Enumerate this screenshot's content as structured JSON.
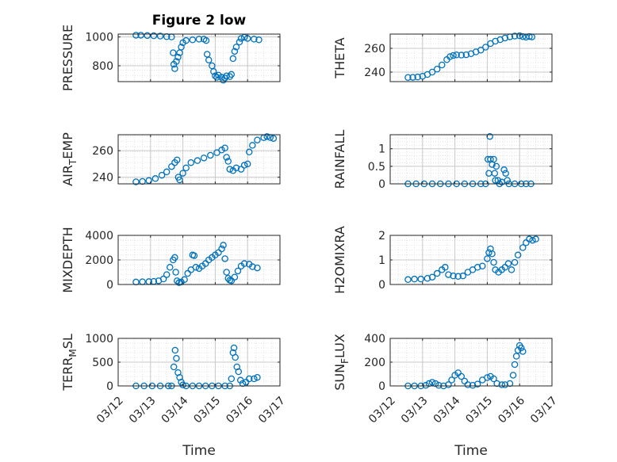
{
  "title": "Figure 2 low",
  "colors": {
    "marker": "#0072BD",
    "axis": "#262626",
    "grid": "#dcdcdc"
  },
  "chart_data": [
    {
      "type": "scatter",
      "ylabel": "PRESSURE",
      "ylabel_sub": "",
      "ylabel_suffix": "",
      "xlim": [
        "03/12",
        "03/17"
      ],
      "ylim": [
        690,
        1020
      ],
      "yticks": [
        800,
        1000
      ],
      "ytick_labels": [
        "800",
        "1000"
      ],
      "points": [
        [
          12.55,
          1012
        ],
        [
          12.7,
          1012
        ],
        [
          12.9,
          1010
        ],
        [
          13.1,
          1008
        ],
        [
          13.3,
          1006
        ],
        [
          13.5,
          1002
        ],
        [
          13.65,
          1000
        ],
        [
          13.7,
          890
        ],
        [
          13.72,
          810
        ],
        [
          13.75,
          780
        ],
        [
          13.8,
          830
        ],
        [
          13.85,
          860
        ],
        [
          13.9,
          890
        ],
        [
          13.95,
          930
        ],
        [
          14.0,
          960
        ],
        [
          14.1,
          975
        ],
        [
          14.3,
          980
        ],
        [
          14.5,
          985
        ],
        [
          14.65,
          985
        ],
        [
          14.72,
          975
        ],
        [
          14.75,
          880
        ],
        [
          14.8,
          840
        ],
        [
          14.9,
          800
        ],
        [
          14.95,
          760
        ],
        [
          15.0,
          730
        ],
        [
          15.05,
          720
        ],
        [
          15.1,
          735
        ],
        [
          15.2,
          720
        ],
        [
          15.25,
          700
        ],
        [
          15.3,
          715
        ],
        [
          15.35,
          730
        ],
        [
          15.45,
          725
        ],
        [
          15.5,
          740
        ],
        [
          15.55,
          850
        ],
        [
          15.6,
          900
        ],
        [
          15.65,
          930
        ],
        [
          15.75,
          965
        ],
        [
          15.8,
          990
        ],
        [
          15.9,
          998
        ],
        [
          16.0,
          990
        ],
        [
          16.2,
          985
        ],
        [
          16.35,
          980
        ]
      ]
    },
    {
      "type": "scatter",
      "ylabel": "THETA",
      "ylabel_sub": "",
      "ylabel_suffix": "",
      "xlim": [
        "03/12",
        "03/17"
      ],
      "ylim": [
        232,
        272
      ],
      "yticks": [
        240,
        260
      ],
      "ytick_labels": [
        "240",
        "260"
      ],
      "points": [
        [
          12.55,
          235.5
        ],
        [
          12.7,
          235.6
        ],
        [
          12.85,
          235.9
        ],
        [
          13.0,
          236.5
        ],
        [
          13.15,
          238
        ],
        [
          13.3,
          240
        ],
        [
          13.45,
          242.5
        ],
        [
          13.6,
          246
        ],
        [
          13.75,
          250.5
        ],
        [
          13.85,
          253
        ],
        [
          13.95,
          254
        ],
        [
          14.05,
          254.5
        ],
        [
          14.2,
          254.3
        ],
        [
          14.35,
          254.6
        ],
        [
          14.5,
          255.5
        ],
        [
          14.65,
          257
        ],
        [
          14.8,
          258.5
        ],
        [
          14.95,
          261
        ],
        [
          15.1,
          264
        ],
        [
          15.25,
          266
        ],
        [
          15.4,
          267.3
        ],
        [
          15.55,
          268.7
        ],
        [
          15.7,
          269.7
        ],
        [
          15.85,
          270.3
        ],
        [
          16.0,
          270.6
        ],
        [
          16.1,
          269.8
        ],
        [
          16.2,
          269.4
        ],
        [
          16.3,
          269.9
        ],
        [
          16.38,
          269.6
        ]
      ]
    },
    {
      "type": "scatter",
      "ylabel": "AIR",
      "ylabel_sub": "T",
      "ylabel_suffix": "EMP",
      "xlim": [
        "03/12",
        "03/17"
      ],
      "ylim": [
        235,
        272
      ],
      "yticks": [
        240,
        260
      ],
      "ytick_labels": [
        "240",
        "260"
      ],
      "points": [
        [
          12.55,
          236.5
        ],
        [
          12.75,
          236.8
        ],
        [
          12.95,
          237.5
        ],
        [
          13.15,
          239
        ],
        [
          13.35,
          241.5
        ],
        [
          13.5,
          244
        ],
        [
          13.65,
          248
        ],
        [
          13.75,
          251
        ],
        [
          13.82,
          253
        ],
        [
          13.86,
          240
        ],
        [
          13.9,
          238
        ],
        [
          14.0,
          243
        ],
        [
          14.1,
          247
        ],
        [
          14.25,
          251
        ],
        [
          14.45,
          252.5
        ],
        [
          14.65,
          254.5
        ],
        [
          14.85,
          256.5
        ],
        [
          15.05,
          258.5
        ],
        [
          15.2,
          260.5
        ],
        [
          15.3,
          262
        ],
        [
          15.35,
          255
        ],
        [
          15.4,
          252
        ],
        [
          15.45,
          246
        ],
        [
          15.55,
          245
        ],
        [
          15.65,
          247
        ],
        [
          15.8,
          246
        ],
        [
          15.9,
          249
        ],
        [
          16.0,
          250
        ],
        [
          16.05,
          259
        ],
        [
          16.15,
          264
        ],
        [
          16.3,
          268
        ],
        [
          16.5,
          269.8
        ],
        [
          16.6,
          270.6
        ],
        [
          16.7,
          269.9
        ],
        [
          16.8,
          269.2
        ]
      ]
    },
    {
      "type": "scatter",
      "ylabel": "RAINFALL",
      "ylabel_sub": "",
      "ylabel_suffix": "",
      "xlim": [
        "03/12",
        "03/17"
      ],
      "ylim": [
        0,
        1.4
      ],
      "yticks": [
        0,
        0.5,
        1
      ],
      "ytick_labels": [
        "0",
        "0.5",
        "1"
      ],
      "points": [
        [
          12.55,
          0
        ],
        [
          12.8,
          0
        ],
        [
          13.05,
          0
        ],
        [
          13.3,
          0
        ],
        [
          13.55,
          0
        ],
        [
          13.8,
          0
        ],
        [
          14.05,
          0
        ],
        [
          14.3,
          0
        ],
        [
          14.55,
          0
        ],
        [
          14.8,
          0
        ],
        [
          14.95,
          0
        ],
        [
          15.02,
          0.7
        ],
        [
          15.05,
          0.3
        ],
        [
          15.08,
          1.35
        ],
        [
          15.1,
          0.7
        ],
        [
          15.15,
          0.55
        ],
        [
          15.2,
          0.7
        ],
        [
          15.23,
          0.3
        ],
        [
          15.25,
          0.1
        ],
        [
          15.28,
          0.5
        ],
        [
          15.33,
          0.1
        ],
        [
          15.38,
          0
        ],
        [
          15.45,
          0.05
        ],
        [
          15.52,
          0.4
        ],
        [
          15.57,
          0.3
        ],
        [
          15.62,
          0.1
        ],
        [
          15.67,
          0
        ],
        [
          15.85,
          0
        ],
        [
          16.05,
          0
        ],
        [
          16.2,
          0
        ],
        [
          16.35,
          0
        ]
      ]
    },
    {
      "type": "scatter",
      "ylabel": "MIXDEPTH",
      "ylabel_sub": "",
      "ylabel_suffix": "",
      "xlim": [
        "03/12",
        "03/17"
      ],
      "ylim": [
        0,
        4000
      ],
      "yticks": [
        0,
        2000,
        4000
      ],
      "ytick_labels": [
        "0",
        "2000",
        "4000"
      ],
      "points": [
        [
          12.55,
          200
        ],
        [
          12.75,
          220
        ],
        [
          12.95,
          230
        ],
        [
          13.1,
          250
        ],
        [
          13.25,
          300
        ],
        [
          13.4,
          450
        ],
        [
          13.5,
          800
        ],
        [
          13.6,
          1400
        ],
        [
          13.7,
          2000
        ],
        [
          13.75,
          2200
        ],
        [
          13.78,
          1000
        ],
        [
          13.82,
          300
        ],
        [
          13.88,
          150
        ],
        [
          13.95,
          200
        ],
        [
          14.05,
          400
        ],
        [
          14.15,
          900
        ],
        [
          14.25,
          1200
        ],
        [
          14.3,
          2400
        ],
        [
          14.35,
          2350
        ],
        [
          14.4,
          1400
        ],
        [
          14.5,
          1300
        ],
        [
          14.6,
          1500
        ],
        [
          14.7,
          1700
        ],
        [
          14.8,
          2000
        ],
        [
          14.9,
          2200
        ],
        [
          15.0,
          2400
        ],
        [
          15.1,
          2600
        ],
        [
          15.2,
          2900
        ],
        [
          15.25,
          3200
        ],
        [
          15.3,
          2100
        ],
        [
          15.35,
          1000
        ],
        [
          15.4,
          500
        ],
        [
          15.45,
          350
        ],
        [
          15.5,
          300
        ],
        [
          15.6,
          600
        ],
        [
          15.7,
          1100
        ],
        [
          15.8,
          1500
        ],
        [
          15.9,
          1700
        ],
        [
          16.05,
          1650
        ],
        [
          16.15,
          1450
        ],
        [
          16.3,
          1350
        ]
      ]
    },
    {
      "type": "scatter",
      "ylabel": "H2OMIXRA",
      "ylabel_sub": "",
      "ylabel_suffix": "",
      "xlim": [
        "03/12",
        "03/17"
      ],
      "ylim": [
        0,
        2
      ],
      "yticks": [
        0,
        1,
        2
      ],
      "ytick_labels": [
        "0",
        "1",
        "2"
      ],
      "points": [
        [
          12.55,
          0.2
        ],
        [
          12.75,
          0.22
        ],
        [
          12.95,
          0.22
        ],
        [
          13.15,
          0.25
        ],
        [
          13.3,
          0.3
        ],
        [
          13.45,
          0.45
        ],
        [
          13.6,
          0.6
        ],
        [
          13.7,
          0.7
        ],
        [
          13.8,
          0.4
        ],
        [
          13.95,
          0.35
        ],
        [
          14.1,
          0.33
        ],
        [
          14.25,
          0.35
        ],
        [
          14.4,
          0.5
        ],
        [
          14.55,
          0.6
        ],
        [
          14.7,
          0.7
        ],
        [
          14.85,
          0.75
        ],
        [
          15.0,
          1.05
        ],
        [
          15.05,
          1.3
        ],
        [
          15.1,
          1.45
        ],
        [
          15.15,
          1.25
        ],
        [
          15.2,
          0.9
        ],
        [
          15.25,
          0.6
        ],
        [
          15.35,
          0.5
        ],
        [
          15.45,
          0.6
        ],
        [
          15.55,
          0.7
        ],
        [
          15.65,
          0.85
        ],
        [
          15.75,
          0.6
        ],
        [
          15.85,
          0.9
        ],
        [
          15.95,
          1.2
        ],
        [
          16.1,
          1.5
        ],
        [
          16.2,
          1.7
        ],
        [
          16.3,
          1.85
        ],
        [
          16.4,
          1.8
        ],
        [
          16.5,
          1.85
        ]
      ]
    },
    {
      "type": "scatter",
      "ylabel": "TERR",
      "ylabel_sub": "M",
      "ylabel_suffix": "SL",
      "xlim": [
        "03/12",
        "03/17"
      ],
      "ylim": [
        0,
        1000
      ],
      "yticks": [
        0,
        500,
        1000
      ],
      "ytick_labels": [
        "0",
        "500",
        "1000"
      ],
      "points": [
        [
          12.55,
          0
        ],
        [
          12.8,
          0
        ],
        [
          13.05,
          0
        ],
        [
          13.3,
          0
        ],
        [
          13.55,
          0
        ],
        [
          13.65,
          0
        ],
        [
          13.72,
          400
        ],
        [
          13.76,
          750
        ],
        [
          13.8,
          580
        ],
        [
          13.85,
          280
        ],
        [
          13.9,
          180
        ],
        [
          13.95,
          80
        ],
        [
          14.0,
          20
        ],
        [
          14.1,
          0
        ],
        [
          14.3,
          0
        ],
        [
          14.5,
          0
        ],
        [
          14.7,
          0
        ],
        [
          14.9,
          0
        ],
        [
          15.1,
          0
        ],
        [
          15.3,
          0
        ],
        [
          15.45,
          0
        ],
        [
          15.5,
          150
        ],
        [
          15.55,
          700
        ],
        [
          15.58,
          800
        ],
        [
          15.62,
          600
        ],
        [
          15.67,
          400
        ],
        [
          15.72,
          300
        ],
        [
          15.78,
          120
        ],
        [
          15.85,
          50
        ],
        [
          15.95,
          80
        ],
        [
          16.05,
          150
        ],
        [
          16.2,
          150
        ],
        [
          16.3,
          180
        ]
      ]
    },
    {
      "type": "scatter",
      "ylabel": "SUN",
      "ylabel_sub": "F",
      "ylabel_suffix": "LUX",
      "xlim": [
        "03/12",
        "03/17"
      ],
      "ylim": [
        0,
        400
      ],
      "yticks": [
        0,
        200,
        400
      ],
      "ytick_labels": [
        "0",
        "200",
        "400"
      ],
      "points": [
        [
          12.55,
          0
        ],
        [
          12.75,
          0
        ],
        [
          12.95,
          0
        ],
        [
          13.1,
          5
        ],
        [
          13.2,
          20
        ],
        [
          13.3,
          30
        ],
        [
          13.4,
          20
        ],
        [
          13.5,
          5
        ],
        [
          13.65,
          0
        ],
        [
          13.8,
          10
        ],
        [
          13.9,
          50
        ],
        [
          14.0,
          90
        ],
        [
          14.1,
          110
        ],
        [
          14.2,
          80
        ],
        [
          14.3,
          40
        ],
        [
          14.4,
          10
        ],
        [
          14.55,
          5
        ],
        [
          14.7,
          15
        ],
        [
          14.85,
          50
        ],
        [
          15.0,
          70
        ],
        [
          15.1,
          80
        ],
        [
          15.2,
          60
        ],
        [
          15.3,
          20
        ],
        [
          15.45,
          10
        ],
        [
          15.55,
          10
        ],
        [
          15.7,
          20
        ],
        [
          15.8,
          90
        ],
        [
          15.85,
          180
        ],
        [
          15.9,
          250
        ],
        [
          15.95,
          300
        ],
        [
          16.0,
          340
        ],
        [
          16.05,
          320
        ],
        [
          16.1,
          290
        ]
      ]
    }
  ],
  "xtick_labels": [
    "03/12",
    "03/13",
    "03/14",
    "03/15",
    "03/16",
    "03/17"
  ],
  "xlabel": "Time"
}
